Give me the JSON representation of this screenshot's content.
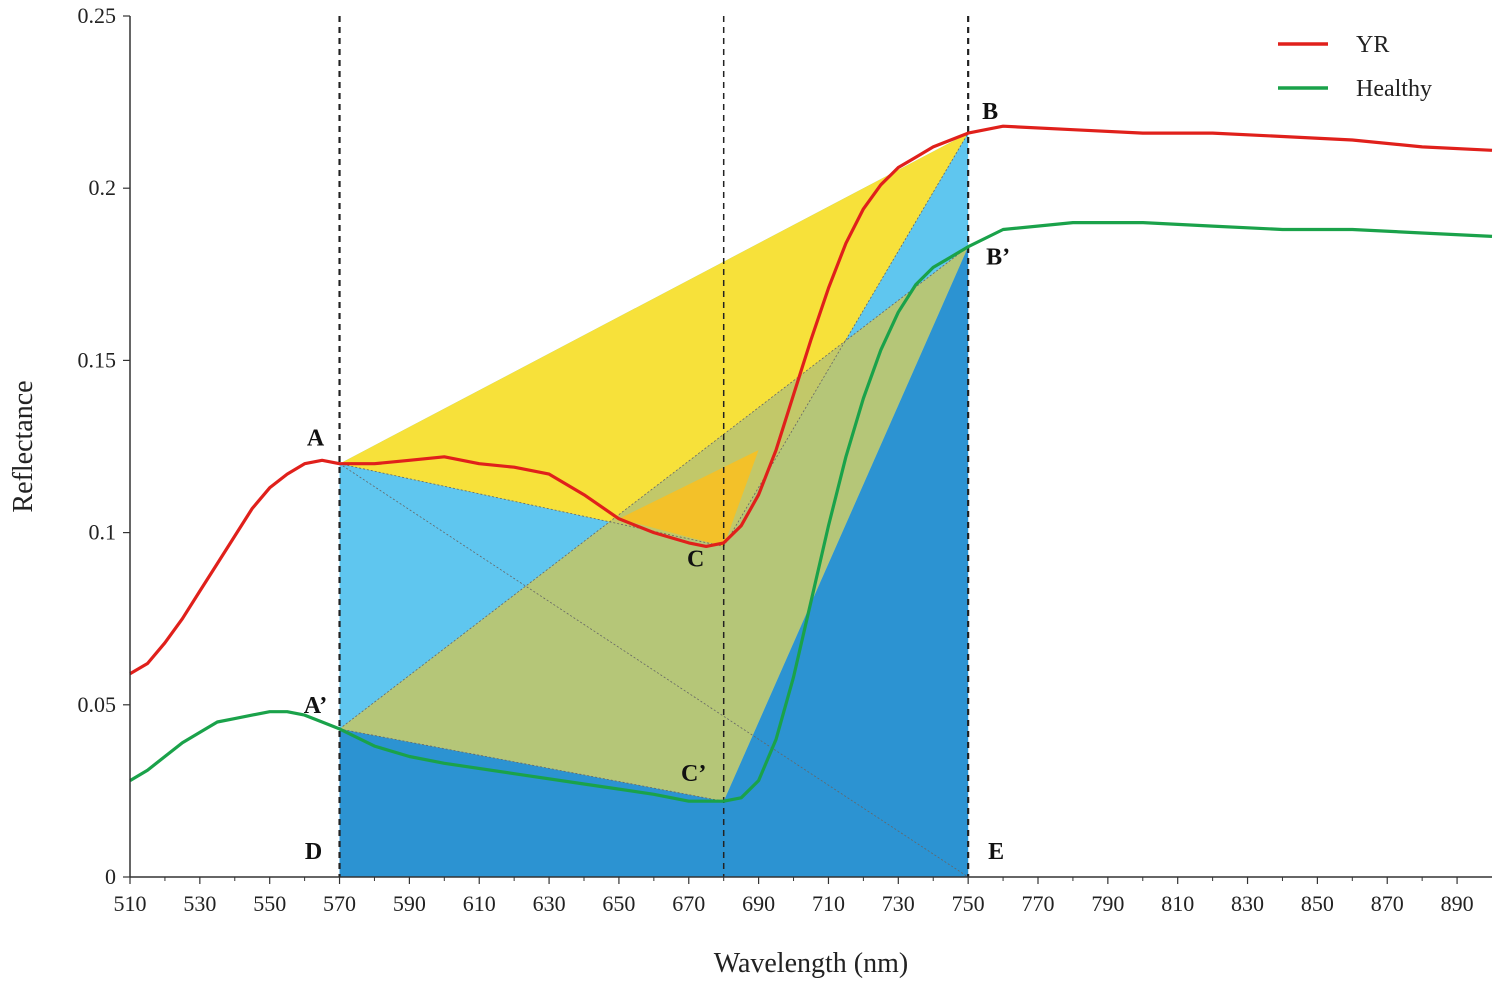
{
  "chart_data": {
    "type": "line",
    "title": "",
    "xlabel": "Wavelength (nm)",
    "ylabel": "Reflectance",
    "xlim": [
      510,
      900
    ],
    "ylim": [
      0,
      0.25
    ],
    "xticks": [
      510,
      530,
      550,
      570,
      590,
      610,
      630,
      650,
      670,
      690,
      710,
      730,
      750,
      770,
      790,
      810,
      830,
      850,
      870,
      890
    ],
    "xtick_labels": [
      "510",
      "530",
      "550",
      "570",
      "590",
      "610",
      "630",
      "650",
      "670",
      "690",
      "710",
      "730",
      "750",
      "770",
      "790",
      "810",
      "830",
      "850",
      "870",
      "890"
    ],
    "yticks": [
      0,
      0.05,
      0.1,
      0.15,
      0.2,
      0.25
    ],
    "ytick_labels": [
      "0",
      "0.05",
      "0.1",
      "0.15",
      "0.2",
      "0.25"
    ],
    "grid": false,
    "legend_position": "top-right",
    "series": [
      {
        "name": "YR",
        "color": "#e0201b",
        "x": [
          510,
          515,
          520,
          525,
          530,
          535,
          540,
          545,
          550,
          555,
          560,
          565,
          570,
          575,
          580,
          590,
          600,
          610,
          620,
          630,
          640,
          650,
          660,
          670,
          675,
          680,
          685,
          690,
          695,
          700,
          705,
          710,
          715,
          720,
          725,
          730,
          735,
          740,
          745,
          750,
          760,
          780,
          800,
          820,
          840,
          860,
          880,
          900
        ],
        "y": [
          0.059,
          0.062,
          0.068,
          0.075,
          0.083,
          0.091,
          0.099,
          0.107,
          0.113,
          0.117,
          0.12,
          0.121,
          0.12,
          0.12,
          0.12,
          0.121,
          0.122,
          0.12,
          0.119,
          0.117,
          0.111,
          0.104,
          0.1,
          0.097,
          0.096,
          0.097,
          0.102,
          0.111,
          0.124,
          0.14,
          0.156,
          0.171,
          0.184,
          0.194,
          0.201,
          0.206,
          0.209,
          0.212,
          0.214,
          0.216,
          0.218,
          0.217,
          0.216,
          0.216,
          0.215,
          0.214,
          0.212,
          0.211
        ]
      },
      {
        "name": "Healthy",
        "color": "#1aa24a",
        "x": [
          510,
          515,
          520,
          525,
          530,
          535,
          540,
          545,
          550,
          555,
          560,
          565,
          570,
          580,
          590,
          600,
          620,
          640,
          660,
          670,
          680,
          685,
          690,
          695,
          700,
          705,
          710,
          715,
          720,
          725,
          730,
          735,
          740,
          745,
          750,
          760,
          780,
          800,
          820,
          840,
          860,
          880,
          900
        ],
        "y": [
          0.028,
          0.031,
          0.035,
          0.039,
          0.042,
          0.045,
          0.046,
          0.047,
          0.048,
          0.048,
          0.047,
          0.045,
          0.043,
          0.038,
          0.035,
          0.033,
          0.03,
          0.027,
          0.024,
          0.022,
          0.022,
          0.023,
          0.028,
          0.04,
          0.058,
          0.08,
          0.102,
          0.122,
          0.139,
          0.153,
          0.164,
          0.172,
          0.177,
          0.18,
          0.183,
          0.188,
          0.19,
          0.19,
          0.189,
          0.188,
          0.188,
          0.187,
          0.186
        ]
      }
    ],
    "points": [
      {
        "label": "A",
        "x": 570,
        "y": 0.12
      },
      {
        "label": "B",
        "x": 750,
        "y": 0.216
      },
      {
        "label": "C",
        "x": 680,
        "y": 0.096
      },
      {
        "label": "A’",
        "x": 570,
        "y": 0.043
      },
      {
        "label": "B’",
        "x": 750,
        "y": 0.183
      },
      {
        "label": "C’",
        "x": 680,
        "y": 0.022
      },
      {
        "label": "D",
        "x": 570,
        "y": 0
      },
      {
        "label": "E",
        "x": 750,
        "y": 0
      }
    ],
    "vertical_markers": [
      570,
      680,
      750
    ],
    "region_colors": {
      "yellow": "#f7e13a",
      "light_blue": "#5fc6ef",
      "olive": "#bdc66e",
      "dark_blue": "#2c93d2",
      "orange": "#fbbf1e"
    }
  }
}
